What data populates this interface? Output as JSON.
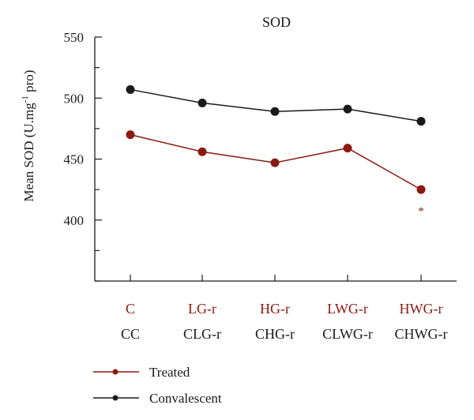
{
  "chart_data": {
    "type": "line",
    "title": "SOD",
    "ylabel_main": "Mean SOD (U.mg",
    "ylabel_sup": "-1",
    "ylabel_end": " pro)",
    "ylim": [
      350,
      550
    ],
    "yticks": [
      400,
      450,
      500,
      550
    ],
    "ytick_labels": [
      "400",
      "450",
      "500",
      "550"
    ],
    "grid": false,
    "legend_position": "bottom-left",
    "categories_treated": [
      "C",
      "LG-r",
      "HG-r",
      "LWG-r",
      "HWG-r"
    ],
    "categories_convalescent": [
      "CC",
      "CLG-r",
      "CHG-r",
      "CLWG-r",
      "CHWG-r"
    ],
    "series": [
      {
        "name": "Treated",
        "color": "#8b1a10",
        "values": [
          470,
          456,
          447,
          459,
          425
        ]
      },
      {
        "name": "Convalescent",
        "color": "#1a1a1a",
        "values": [
          507,
          496,
          489,
          491,
          481
        ]
      }
    ],
    "annotations": [
      {
        "text": "*",
        "series": 0,
        "index": 4
      }
    ]
  }
}
